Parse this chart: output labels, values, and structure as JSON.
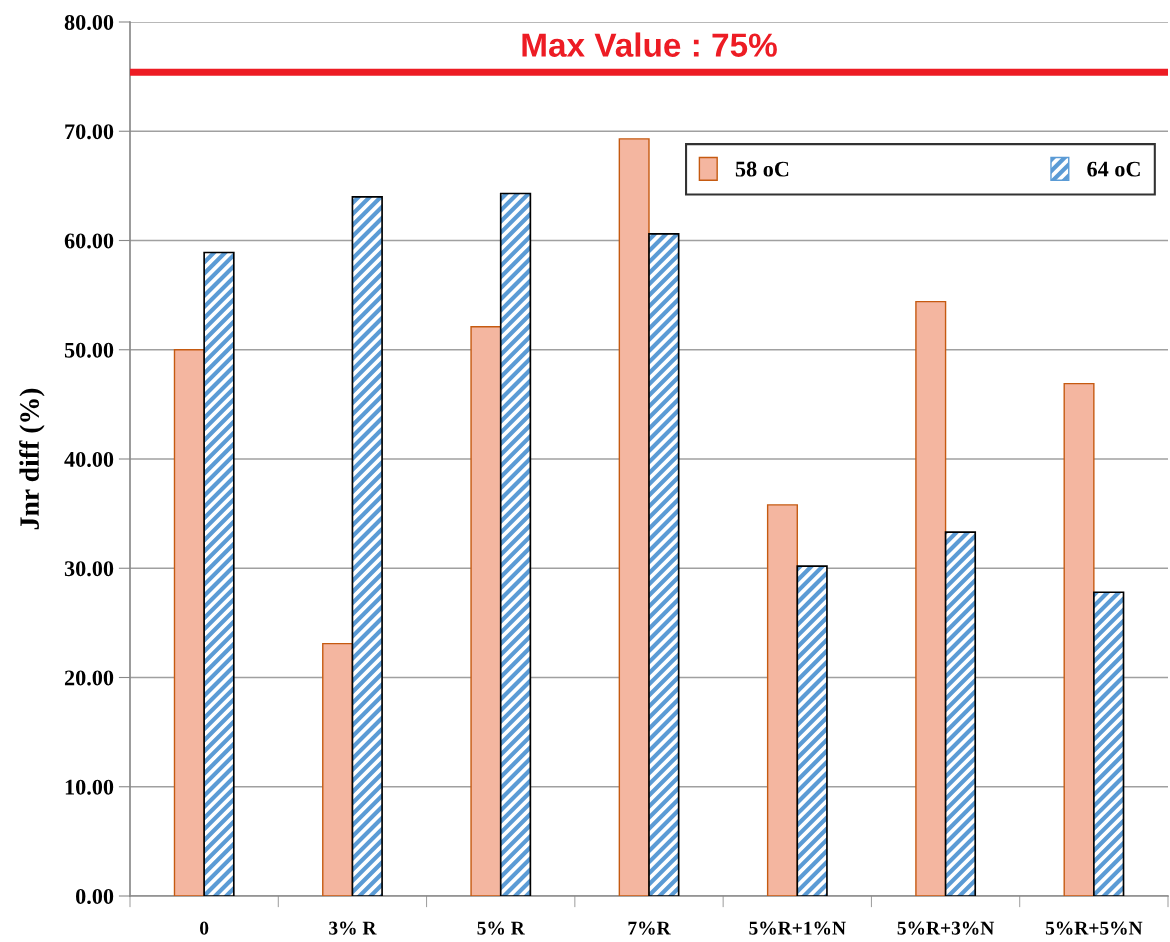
{
  "chart_data": {
    "type": "bar",
    "ylabel": "Jnr diff (%)",
    "categories": [
      "0",
      "3% R",
      "5% R",
      "7%R",
      "5%R+1%N",
      "5%R+3%N",
      "5%R+5%N"
    ],
    "series": [
      {
        "name": "58 oC",
        "color": "#f4b6a0",
        "values": [
          50.0,
          23.1,
          52.1,
          69.3,
          35.8,
          54.4,
          46.9
        ]
      },
      {
        "name": "64 oC",
        "color": "#5b9bd5",
        "values": [
          58.9,
          64.0,
          64.3,
          60.6,
          30.2,
          33.3,
          27.8
        ]
      }
    ],
    "ylim": [
      0,
      80
    ],
    "yticks": [
      {
        "value": 0,
        "label": "0.00"
      },
      {
        "value": 10,
        "label": "10.00"
      },
      {
        "value": 20,
        "label": "20.00"
      },
      {
        "value": 30,
        "label": "30.00"
      },
      {
        "value": 40,
        "label": "40.00"
      },
      {
        "value": 50,
        "label": "50.00"
      },
      {
        "value": 60,
        "label": "60.00"
      },
      {
        "value": 70,
        "label": "70.00"
      },
      {
        "value": 80,
        "label": "80.00"
      }
    ],
    "ref_lines": [
      {
        "axis": "y",
        "value": 75.4,
        "label": "Max Value : 75%",
        "color": "#ed1c24"
      }
    ],
    "grid": "y",
    "legend": "top right"
  }
}
